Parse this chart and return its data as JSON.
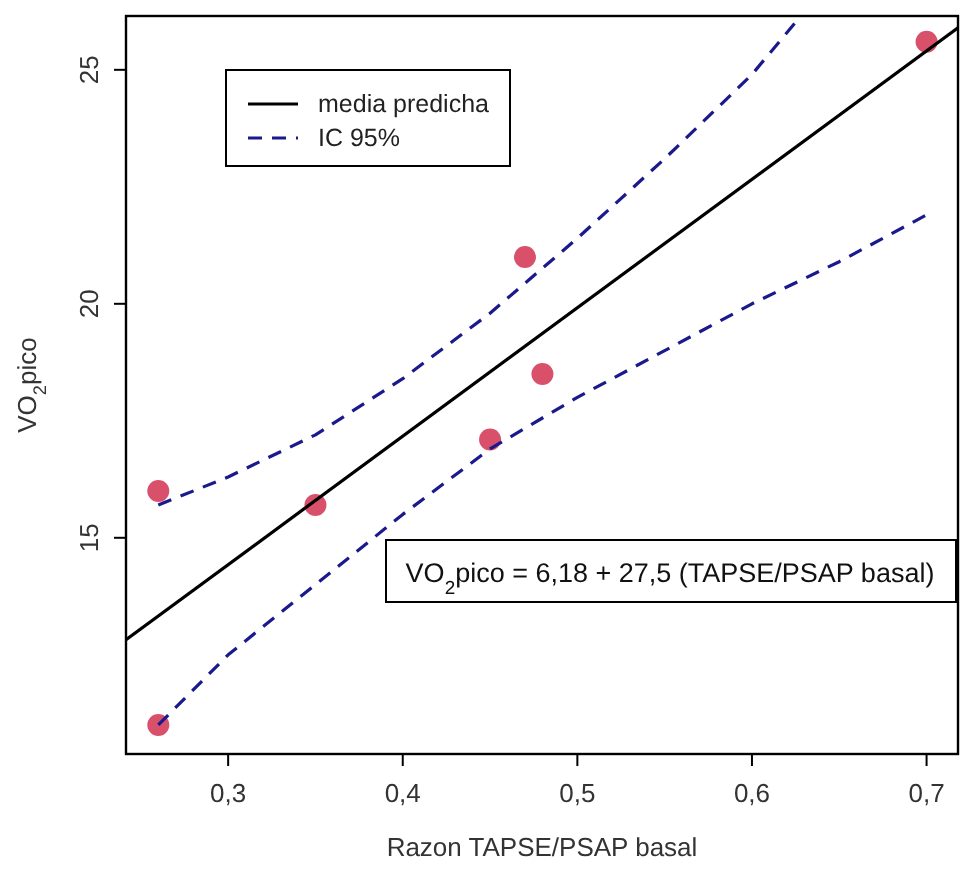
{
  "chart_data": {
    "type": "scatter",
    "xlabel": "Razon TAPSE/PSAP basal",
    "ylabel": "VO$_{2}$pico",
    "xlim": [
      0.2415,
      0.718
    ],
    "ylim": [
      10.38,
      26.15
    ],
    "xticks": [
      {
        "value": 0.3,
        "label": "0,3"
      },
      {
        "value": 0.4,
        "label": "0,4"
      },
      {
        "value": 0.5,
        "label": "0,5"
      },
      {
        "value": 0.6,
        "label": "0,6"
      },
      {
        "value": 0.7,
        "label": "0,7"
      }
    ],
    "yticks": [
      15,
      20,
      25
    ],
    "grid": false,
    "legend": "top left",
    "annotations": [
      "VO$_{2}$pico = 6,18 + 27,5 (TAPSE/PSAP basal)"
    ],
    "series": [
      {
        "marker": "circle",
        "color": "#d9506a",
        "x": [
          0.26,
          0.26,
          0.35,
          0.45,
          0.47,
          0.48,
          0.7
        ],
        "values": [
          16.0,
          11.0,
          15.7,
          17.1,
          21.0,
          18.5,
          25.6
        ]
      },
      {
        "type": "line",
        "name": "media predicha",
        "line_style": "solid",
        "color": "#000000",
        "x": [
          0.2415,
          0.718
        ],
        "values": [
          12.82,
          25.9
        ]
      },
      {
        "type": "line",
        "name": "IC 95%",
        "line_style": "dashed",
        "color": "#1a1a8c",
        "x": [
          0.26,
          0.3,
          0.35,
          0.4,
          0.45,
          0.5,
          0.55,
          0.6,
          0.628
        ],
        "values": [
          15.7,
          16.3,
          17.2,
          18.4,
          19.8,
          21.4,
          23.1,
          24.9,
          26.15
        ]
      },
      {
        "type": "line",
        "line_style": "dashed",
        "color": "#1a1a8c",
        "x": [
          0.26,
          0.3,
          0.35,
          0.4,
          0.45,
          0.5,
          0.55,
          0.6,
          0.65,
          0.7
        ],
        "values": [
          11.0,
          12.5,
          14.0,
          15.5,
          16.9,
          18.0,
          19.0,
          20.0,
          20.9,
          21.9
        ]
      }
    ]
  }
}
